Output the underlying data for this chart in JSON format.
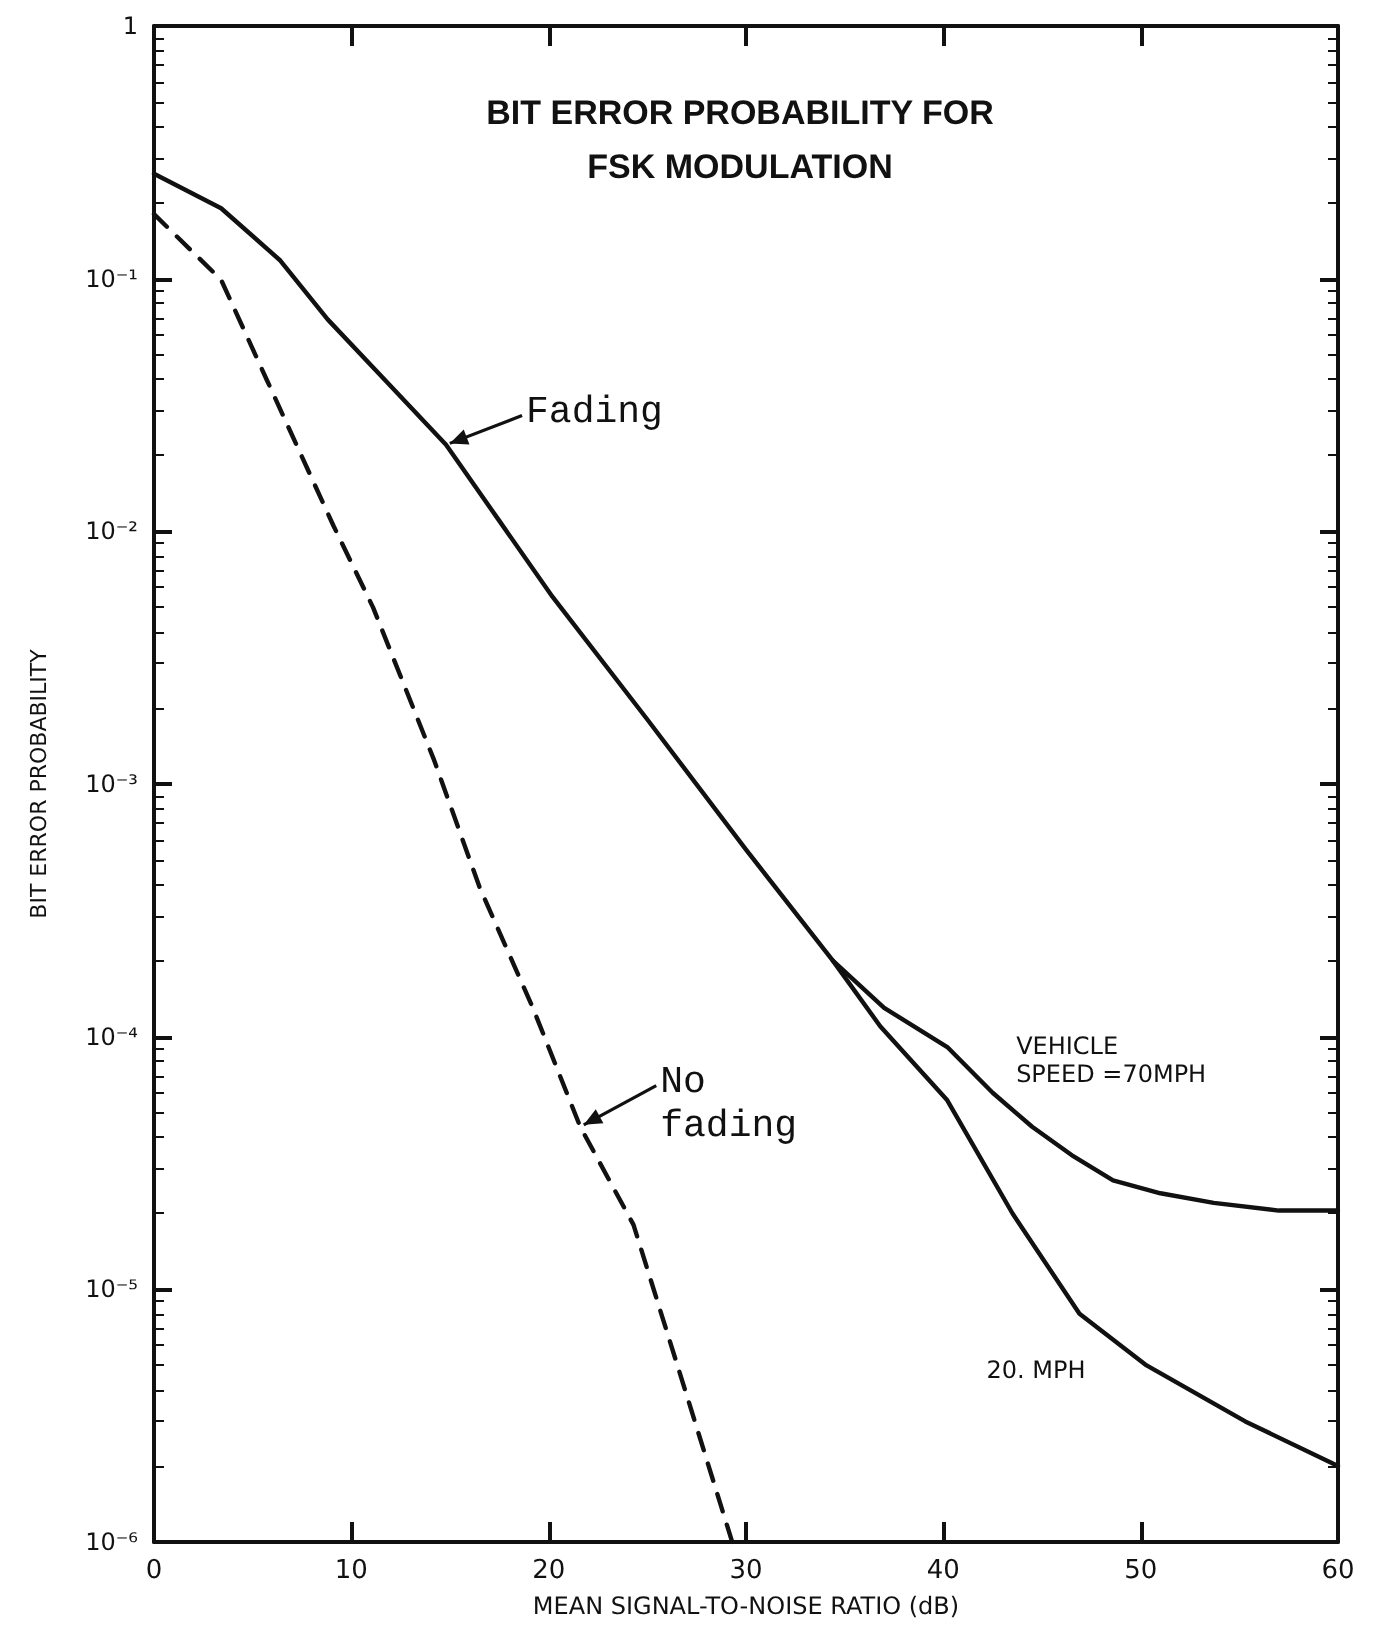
{
  "chart_data": {
    "type": "line",
    "title": "BIT ERROR PROBABILITY FOR\nFSK MODULATION",
    "xlabel": "MEAN SIGNAL-TO-NOISE RATIO (dB)",
    "ylabel": "BIT ERROR PROBABILITY",
    "series": [
      {
        "color": "#111111",
        "line_style": "solid",
        "x": [
          0,
          3.4,
          6.4,
          8.8,
          11.8,
          14.8,
          17.5,
          20.2,
          25,
          30,
          34.4,
          37,
          40.2,
          42.5,
          44.5,
          46.5,
          48.6,
          51,
          53.7,
          57,
          60
        ],
        "values": [
          0.26,
          0.19,
          0.118,
          0.069,
          0.039,
          0.022,
          0.011,
          0.0055,
          0.0018,
          0.00055,
          0.0002,
          0.00013,
          9.1e-05,
          6e-05,
          4.4e-05,
          3.4e-05,
          2.7e-05,
          2.4e-05,
          2.2e-05,
          2.05e-05,
          2.05e-05
        ]
      },
      {
        "color": "#111111",
        "line_style": "solid",
        "x": [
          34.4,
          36.8,
          40.2,
          43.5,
          46.9,
          50.3,
          55.3,
          60
        ],
        "values": [
          0.0002,
          0.00011,
          5.6e-05,
          2e-05,
          8e-06,
          5e-06,
          3e-06,
          2e-06
        ]
      },
      {
        "color": "#111111",
        "line_style": "dashed",
        "x": [
          0,
          3.4,
          5.7,
          9.1,
          11.1,
          14.2,
          16.5,
          19.2,
          21.6,
          24.3,
          27,
          29.3
        ],
        "values": [
          0.18,
          0.099,
          0.04,
          0.0105,
          0.005,
          0.00124,
          0.00039,
          0.00013,
          4.4e-05,
          1.8e-05,
          3.8e-06,
          1e-06
        ]
      }
    ],
    "annotations": [
      {
        "text": "Fading",
        "x": 14.8,
        "y": 0.022
      },
      {
        "text": "No\nfading",
        "x": 21.6,
        "y": 4.4e-05
      },
      {
        "text": "VEHICLE\nSPEED =70MPH",
        "x": 44.5,
        "y": 4.4e-05
      },
      {
        "text": "20. MPH",
        "x": 50.3,
        "y": 5e-06
      }
    ],
    "xlim": [
      0,
      60
    ],
    "xticks": [
      0,
      10,
      20,
      30,
      40,
      50,
      60
    ],
    "ylim": [
      1e-06,
      1
    ],
    "yticks": [
      {
        "value": 1e-06,
        "label": "10⁻⁶"
      },
      {
        "value": 1e-05,
        "label": "10⁻⁵"
      },
      {
        "value": 0.0001,
        "label": "10⁻⁴"
      },
      {
        "value": 0.001,
        "label": "10⁻³"
      },
      {
        "value": 0.01,
        "label": "10⁻²"
      },
      {
        "value": 0.1,
        "label": "10⁻¹"
      },
      1
    ],
    "log": true,
    "marker": "none",
    "grid": false,
    "legend": false
  }
}
